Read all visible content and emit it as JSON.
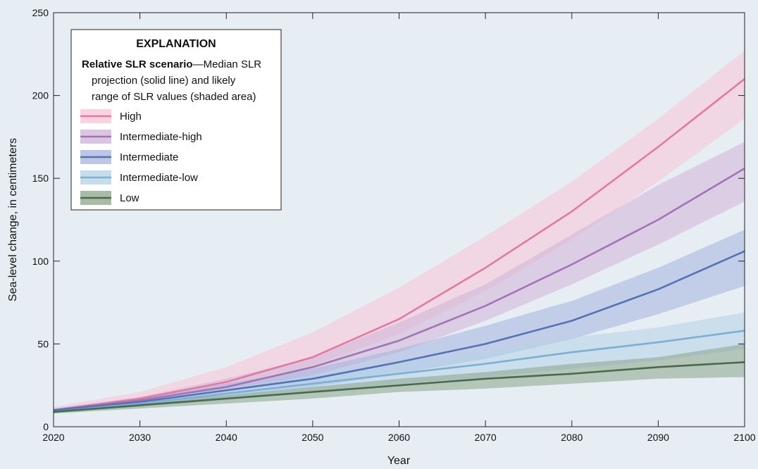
{
  "chart_data": {
    "type": "area",
    "xlabel": "Year",
    "ylabel": "Sea-level change, in centimeters",
    "xlim": [
      2020,
      2100
    ],
    "ylim": [
      0,
      250
    ],
    "x_ticks": [
      2020,
      2030,
      2040,
      2050,
      2060,
      2070,
      2080,
      2090,
      2100
    ],
    "y_ticks": [
      0,
      50,
      100,
      150,
      200,
      250
    ],
    "grid": false,
    "legend_position": "top-left",
    "legend": {
      "title": "EXPLANATION",
      "subtitle_bold": "Relative SLR scenario",
      "subtitle_rest": "—Median SLR",
      "subtitle_line2": "projection (solid line) and likely",
      "subtitle_line3": "range of SLR values (shaded area)"
    },
    "x": [
      2020,
      2030,
      2040,
      2050,
      2060,
      2070,
      2080,
      2090,
      2100
    ],
    "series": [
      {
        "name": "Low",
        "color": "#4a6b4a",
        "band_color": "#8aa48a",
        "values": [
          9,
          13,
          17,
          21,
          25,
          29,
          32,
          36,
          39
        ],
        "lower": [
          8,
          11,
          14,
          17,
          21,
          23,
          26,
          29,
          30
        ],
        "upper": [
          10,
          15,
          19,
          24,
          29,
          33,
          38,
          42,
          50
        ]
      },
      {
        "name": "Intermediate-low",
        "color": "#7bafd4",
        "band_color": "#b3d1e6",
        "values": [
          9,
          14,
          20,
          26,
          32,
          38,
          45,
          51,
          58
        ],
        "lower": [
          8,
          12,
          16,
          21,
          26,
          30,
          35,
          40,
          47
        ],
        "upper": [
          11,
          16,
          23,
          31,
          38,
          46,
          54,
          60,
          69
        ]
      },
      {
        "name": "Intermediate",
        "color": "#5472b6",
        "band_color": "#a4b4dc",
        "values": [
          10,
          15,
          22,
          29,
          39,
          50,
          64,
          83,
          106
        ],
        "lower": [
          8,
          12,
          18,
          24,
          32,
          41,
          53,
          68,
          85
        ],
        "upper": [
          11,
          17,
          26,
          35,
          47,
          61,
          76,
          96,
          119
        ]
      },
      {
        "name": "Intermediate-high",
        "color": "#a373b6",
        "band_color": "#cfb3d7",
        "values": [
          10,
          16,
          24,
          36,
          52,
          73,
          98,
          125,
          156
        ],
        "lower": [
          9,
          14,
          21,
          31,
          45,
          64,
          86,
          110,
          136
        ],
        "upper": [
          11,
          18,
          29,
          42,
          63,
          86,
          116,
          146,
          172
        ]
      },
      {
        "name": "High",
        "color": "#e478a3",
        "band_color": "#f7c4d6",
        "values": [
          10,
          17,
          27,
          42,
          65,
          96,
          130,
          169,
          210
        ],
        "lower": [
          9,
          15,
          23,
          37,
          56,
          82,
          113,
          148,
          186
        ],
        "upper": [
          12,
          21,
          36,
          57,
          84,
          115,
          148,
          186,
          227
        ]
      }
    ]
  }
}
